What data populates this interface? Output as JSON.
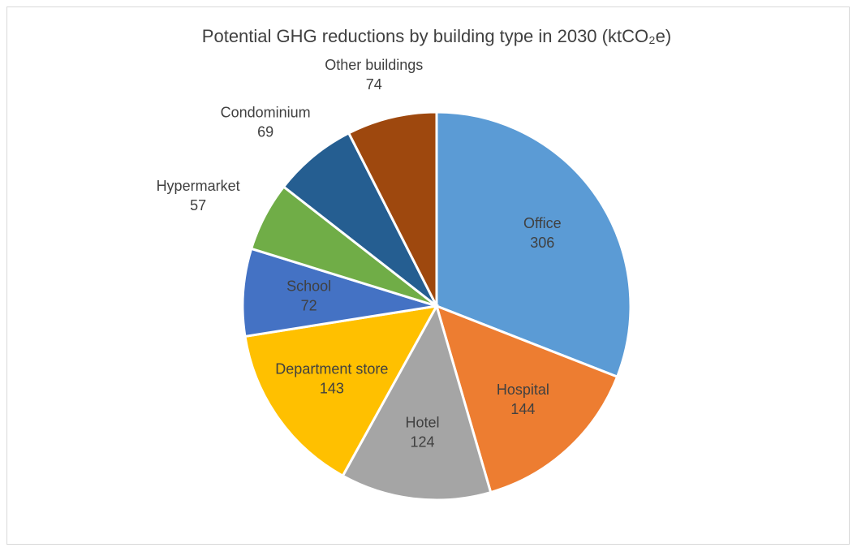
{
  "chart_data": {
    "type": "pie",
    "title": "Potential GHG reductions by building type in 2030 (ktCO₂e)",
    "categories": [
      "Office",
      "Hospital",
      "Hotel",
      "Department store",
      "School",
      "Hypermarket",
      "Condominium",
      "Other buildings"
    ],
    "values": [
      306,
      144,
      124,
      143,
      72,
      57,
      69,
      74
    ],
    "colors": [
      "#5b9bd5",
      "#ed7d31",
      "#a5a5a5",
      "#ffc000",
      "#4472c4",
      "#70ad47",
      "#255e91",
      "#9e480e"
    ],
    "label_outside": [
      false,
      false,
      false,
      false,
      false,
      true,
      true,
      true
    ]
  }
}
